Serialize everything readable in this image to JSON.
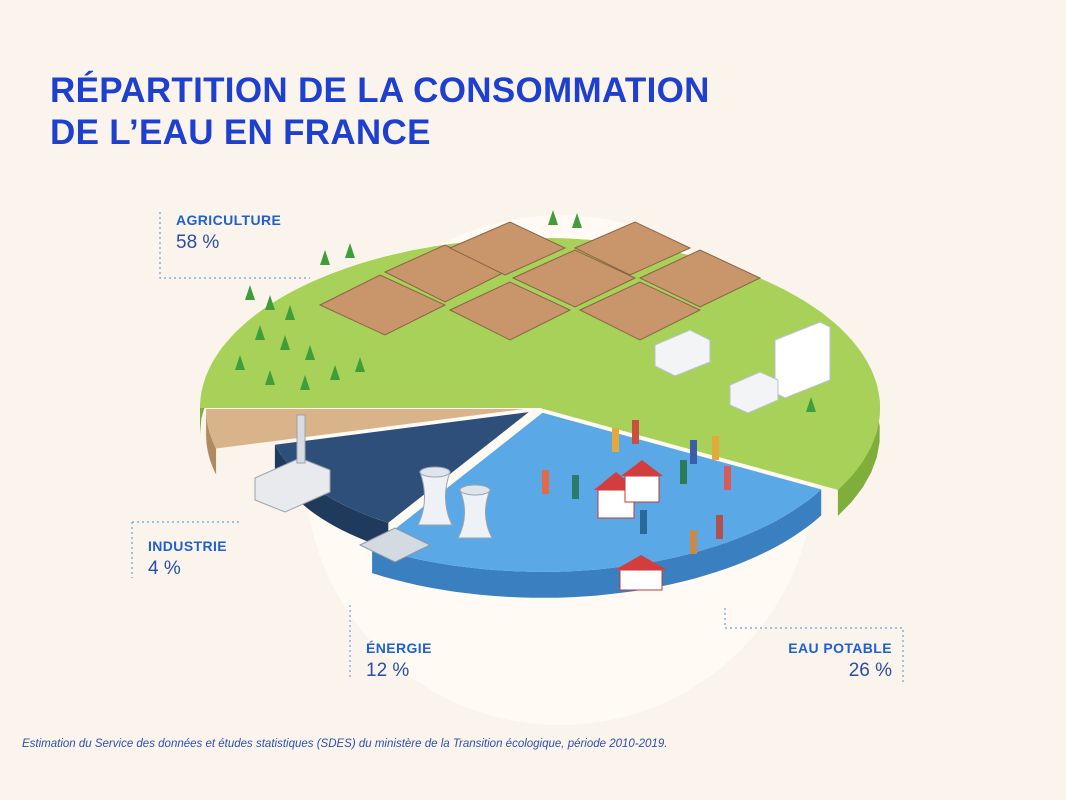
{
  "title_lines": [
    "RÉPARTITION DE LA CONSOMMATION",
    "DE L’EAU EN FRANCE"
  ],
  "chart_data": {
    "type": "pie",
    "title": "RÉPARTITION DE LA CONSOMMATION DE L’EAU EN FRANCE",
    "slices": [
      {
        "label": "AGRICULTURE",
        "value": 58,
        "display": "58 %",
        "color": "#a8d15a"
      },
      {
        "label": "EAU POTABLE",
        "value": 26,
        "display": "26 %",
        "color": "#5aa8e6"
      },
      {
        "label": "ÉNERGIE",
        "value": 12,
        "display": "12 %",
        "color": "#2e4f7a"
      },
      {
        "label": "INDUSTRIE",
        "value": 4,
        "display": "4 %",
        "color": "#d9b48a"
      }
    ]
  },
  "footnote": "Estimation du Service des données et études statistiques (SDES) du ministère de la Transition écologique, période 2010-2019.",
  "colors": {
    "background": "#fbf4ec",
    "title": "#1e40cf",
    "label": "#1e5fd6",
    "leader_line": "#6aa0d8"
  }
}
